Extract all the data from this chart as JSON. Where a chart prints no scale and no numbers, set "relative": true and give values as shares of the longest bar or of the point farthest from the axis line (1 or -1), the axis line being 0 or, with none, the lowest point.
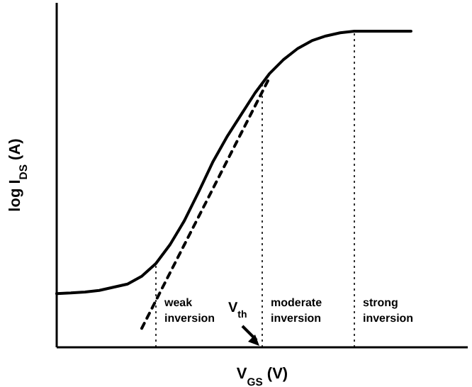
{
  "chart_data": {
    "type": "line",
    "relative": true,
    "xlabel": "V$_{GS}$ (V)",
    "ylabel": "log I$_{DS}$ (A)",
    "categories": [
      null,
      null,
      null,
      null,
      null,
      null,
      null,
      null,
      null,
      null,
      null,
      null,
      null,
      null,
      null,
      null,
      null,
      null,
      null,
      null,
      null,
      null,
      null,
      null,
      null,
      null
    ],
    "series": [
      {
        "color": "#000000",
        "line_style": "solid",
        "values": [
          0.17,
          0.172,
          0.175,
          0.18,
          0.19,
          0.2,
          0.225,
          0.265,
          0.325,
          0.4,
          0.49,
          0.585,
          0.665,
          0.735,
          0.805,
          0.865,
          0.91,
          0.945,
          0.97,
          0.985,
          0.995,
          1,
          1,
          1,
          1,
          1
        ]
      },
      {
        "color": "#000000",
        "line_style": "dashed",
        "values": [
          null,
          null,
          null,
          null,
          null,
          null,
          0.06,
          0.148,
          0.236,
          0.324,
          0.412,
          0.5,
          0.588,
          0.676,
          0.764,
          0.852,
          null,
          null,
          null,
          null,
          null,
          null,
          null,
          null,
          null,
          null
        ]
      }
    ],
    "annotations": [
      "weak inversion",
      "moderate inversion",
      "strong inversion",
      "V$_{th}$"
    ]
  }
}
